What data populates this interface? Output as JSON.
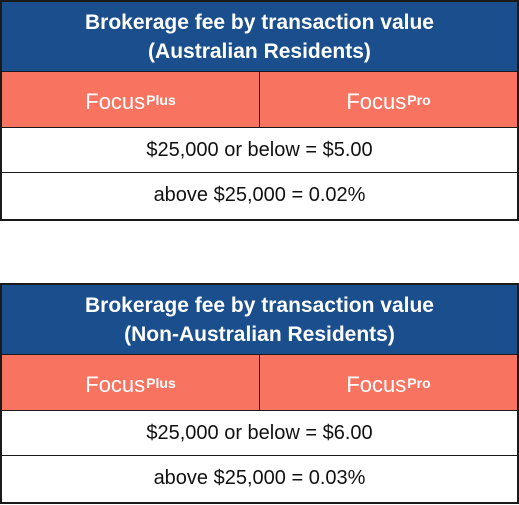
{
  "tables": [
    {
      "title_line1": "Brokerage fee by transaction value",
      "title_line2": "(Australian Residents)",
      "plans": [
        {
          "name": "Focus",
          "sup": "Plus"
        },
        {
          "name": "Focus",
          "sup": "Pro"
        }
      ],
      "rows": [
        "$25,000 or below = $5.00",
        "above $25,000 = 0.02%"
      ]
    },
    {
      "title_line1": "Brokerage fee by transaction value",
      "title_line2": "(Non-Australian Residents)",
      "plans": [
        {
          "name": "Focus",
          "sup": "Plus"
        },
        {
          "name": "Focus",
          "sup": "Pro"
        }
      ],
      "rows": [
        "$25,000 or below = $6.00",
        "above $25,000 = 0.03%"
      ]
    }
  ],
  "colors": {
    "header_bg": "#1a4e8c",
    "plan_row_bg": "#f87461",
    "border": "#1a1a1a"
  }
}
